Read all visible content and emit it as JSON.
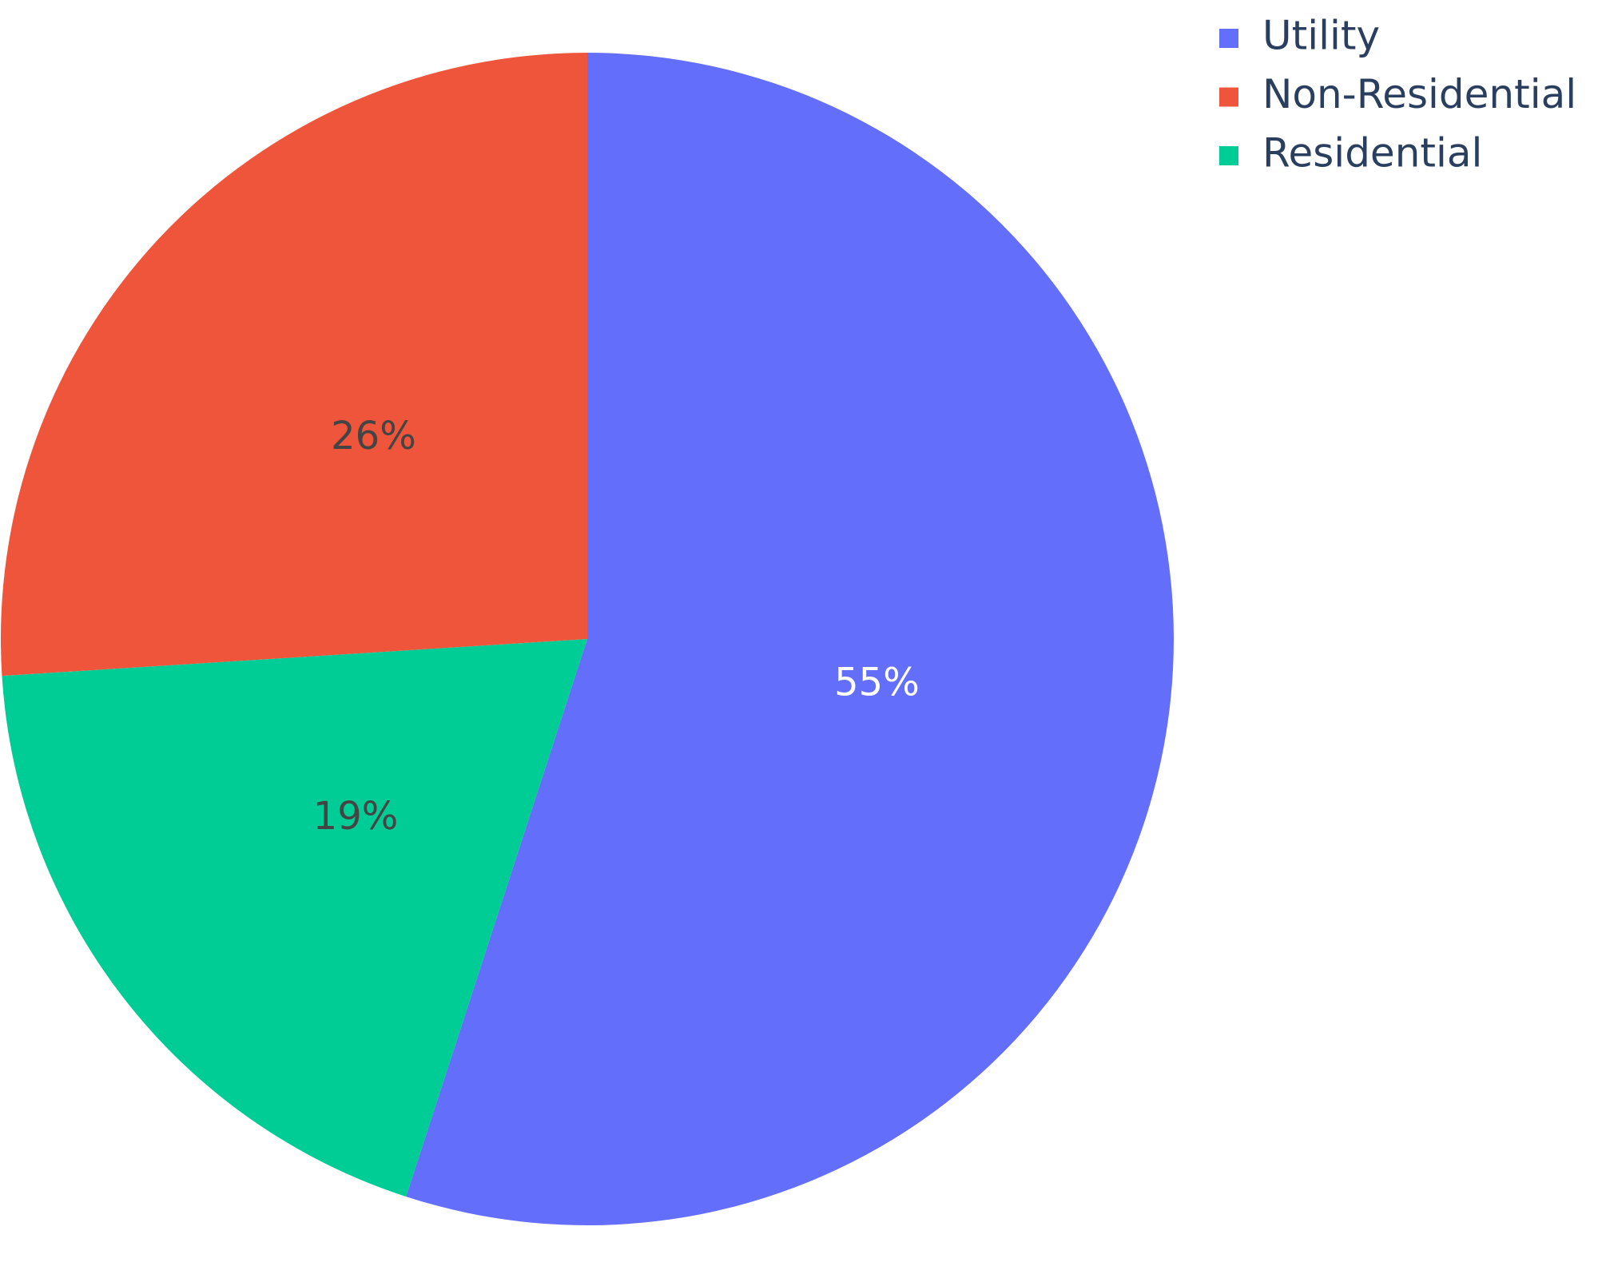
{
  "chart_data": {
    "type": "pie",
    "categories": [
      "Utility",
      "Non-Residential",
      "Residential"
    ],
    "values": [
      55,
      26,
      19
    ],
    "value_labels": [
      "55%",
      "26%",
      "19%"
    ],
    "colors": [
      "#636efa",
      "#ef553b",
      "#00cc96"
    ],
    "legend": "top-right"
  }
}
